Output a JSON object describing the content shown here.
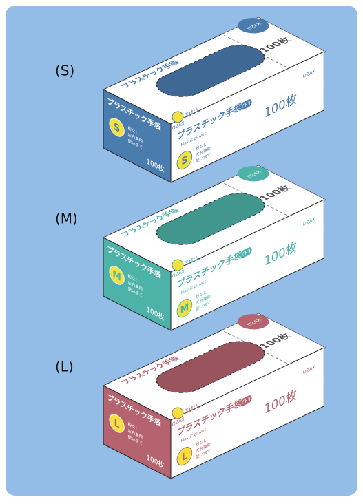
{
  "boxes": [
    {
      "label": "(S)",
      "size": "S",
      "color": "#4a7cae"
    },
    {
      "label": "(M)",
      "size": "M",
      "color": "#4db2a7"
    },
    {
      "label": "(L)",
      "size": "L",
      "color": "#b5636e"
    }
  ],
  "package": {
    "brand": "OZAX",
    "product": "プラスチック手袋",
    "code": "CF3",
    "count": "100枚",
    "english": "Plastic gloves",
    "powder": "粉なし",
    "features": [
      "粉なし",
      "左右兼用",
      "使い捨て"
    ]
  }
}
